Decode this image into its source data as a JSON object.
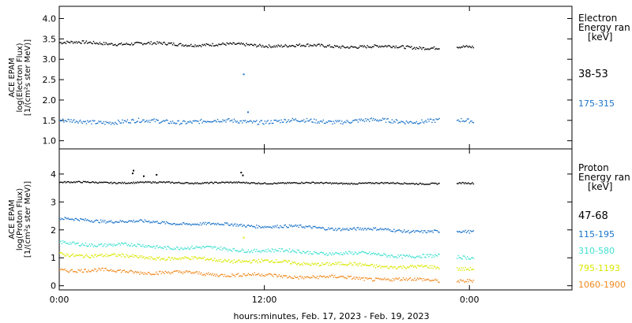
{
  "chart_data": [
    {
      "type": "scatter",
      "ylabel_lines": [
        "ACE EPAM",
        "log(Electron Flux)",
        "[1/(cm²s ster MeV)]"
      ],
      "ylim": [
        0.8,
        4.3
      ],
      "yticks": [
        "1.0",
        "1.5",
        "2.0",
        "2.5",
        "3.0",
        "3.5",
        "4.0"
      ],
      "legend_title_lines": [
        "Electron",
        "Energy ran",
        "[keV]"
      ],
      "series": [
        {
          "name": "38-53",
          "color": "#000000",
          "y_start": 3.42,
          "y_end": 3.3,
          "noise": 0.035,
          "spikes": []
        },
        {
          "name": "175-315",
          "color": "#1a73c9",
          "y_start": 1.48,
          "y_end": 1.5,
          "noise": 0.05,
          "spikes": [
            [
              21.5,
              2.65
            ],
            [
              22.0,
              1.72
            ]
          ]
        }
      ]
    },
    {
      "type": "scatter",
      "ylabel_lines": [
        "ACE EPAM",
        "log(Proton Flux)",
        "[1/(cm²s ster MeV)]"
      ],
      "ylim": [
        -0.15,
        4.9
      ],
      "yticks": [
        "0",
        "1",
        "2",
        "3",
        "4"
      ],
      "legend_title_lines": [
        "Proton",
        "Energy ran",
        "[keV]"
      ],
      "series": [
        {
          "name": "47-68",
          "color": "#000000",
          "y_start": 3.72,
          "y_end": 3.68,
          "noise": 0.025,
          "spikes": [
            [
              8.5,
              4.05
            ],
            [
              8.6,
              4.15
            ],
            [
              9.8,
              3.95
            ],
            [
              11.3,
              4.0
            ],
            [
              21.2,
              4.08
            ],
            [
              21.4,
              3.98
            ]
          ]
        },
        {
          "name": "115-195",
          "color": "#1a73c9",
          "y_start": 2.4,
          "y_end": 1.95,
          "noise": 0.05,
          "spikes": []
        },
        {
          "name": "310-580",
          "color": "#40e0d0",
          "y_start": 1.55,
          "y_end": 1.05,
          "noise": 0.06,
          "spikes": []
        },
        {
          "name": "795-1193",
          "color": "#d8e800",
          "y_start": 1.15,
          "y_end": 0.65,
          "noise": 0.06,
          "spikes": [
            [
              21.5,
              1.75
            ]
          ]
        },
        {
          "name": "1060-1900",
          "color": "#f08a20",
          "y_start": 0.6,
          "y_end": 0.2,
          "noise": 0.06,
          "spikes": []
        }
      ]
    }
  ],
  "x_axis": {
    "label": "hours:minutes, Feb. 17, 2023 - Feb. 19, 2023",
    "ticks": [
      {
        "x": 0,
        "label": "0:00"
      },
      {
        "x": 24,
        "label": "12:00"
      },
      {
        "x": 48,
        "label": "0:00"
      }
    ],
    "xlim": [
      0,
      60
    ],
    "data_end_hours": 44.5,
    "gap_start_hours": 46.5,
    "gap_end_hours": 48.5
  }
}
